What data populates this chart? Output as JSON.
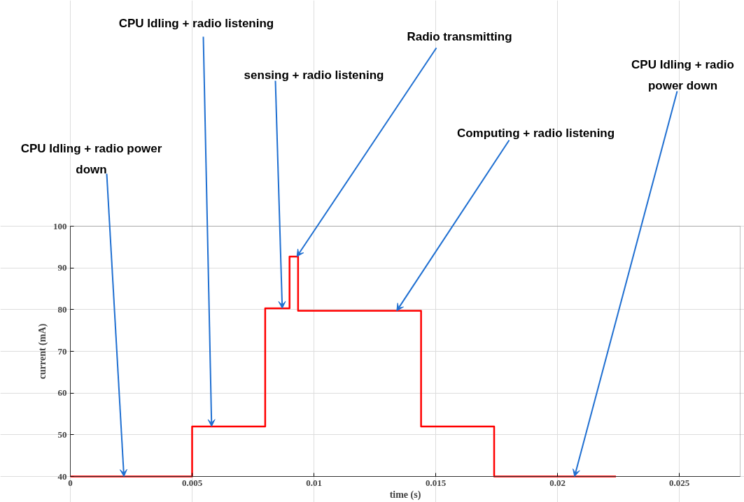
{
  "chart_data": {
    "type": "step",
    "xlabel": "time (s)",
    "ylabel": "current (mA)",
    "x": [
      0,
      0.005,
      0.008,
      0.009,
      0.00935,
      0.0144,
      0.0174,
      0.0224
    ],
    "series": [
      {
        "color": "#ff0000",
        "values": [
          40,
          52,
          80.3,
          92.7,
          79.7,
          52,
          40,
          40
        ]
      }
    ],
    "xlim": [
      0,
      0.0275
    ],
    "ylim": [
      40,
      100
    ],
    "xticks": [
      0,
      0.005,
      0.01,
      0.015,
      0.02,
      0.025
    ],
    "yticks": [
      40,
      50,
      60,
      70,
      80,
      90,
      100
    ],
    "grid": true,
    "marker": "none",
    "line_style": "solid",
    "annotations": [
      {
        "text": "CPU Idling + radio power down",
        "x": 0.0022,
        "y": 40
      },
      {
        "text": "CPU Idling + radio listening",
        "x": 0.0058,
        "y": 52
      },
      {
        "text": "sensing + radio listening",
        "x": 0.0087,
        "y": 80.3
      },
      {
        "text": "Radio transmitting",
        "x": 0.0093,
        "y": 92.7
      },
      {
        "text": "Computing + radio listening",
        "x": 0.0134,
        "y": 79.7
      },
      {
        "text": "CPU Idling + radio power down",
        "x": 0.0207,
        "y": 40
      }
    ]
  }
}
